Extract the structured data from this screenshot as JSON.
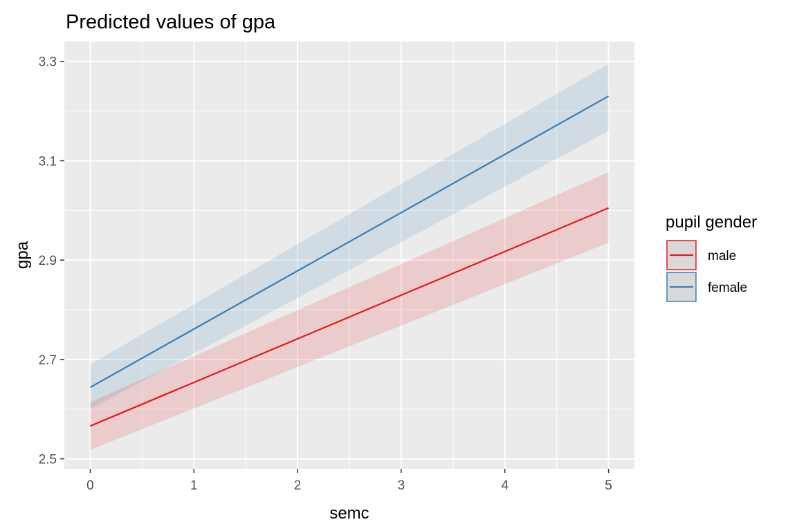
{
  "chart_data": {
    "type": "line",
    "title": "Predicted values of gpa",
    "xlabel": "semc",
    "ylabel": "gpa",
    "xlim": [
      -0.25,
      5.25
    ],
    "ylim": [
      2.48,
      3.34
    ],
    "x_ticks": [
      0,
      1,
      2,
      3,
      4,
      5
    ],
    "x_tick_labels": [
      "0",
      "1",
      "2",
      "3",
      "4",
      "5"
    ],
    "y_ticks": [
      2.5,
      2.7,
      2.9,
      3.1,
      3.3
    ],
    "y_tick_labels": [
      "2.5",
      "2.7",
      "2.9",
      "3.1",
      "3.3"
    ],
    "grid": true,
    "legend": {
      "title": "pupil gender",
      "position": "right"
    },
    "series": [
      {
        "name": "male",
        "color": "#e41a1c",
        "x": [
          0,
          5
        ],
        "y": [
          2.566,
          3.005
        ],
        "ci_low": [
          2.518,
          2.935
        ],
        "ci_high": [
          2.614,
          3.077
        ]
      },
      {
        "name": "female",
        "color": "#377eb8",
        "x": [
          0,
          5
        ],
        "y": [
          2.644,
          3.23
        ],
        "ci_low": [
          2.6,
          3.16
        ],
        "ci_high": [
          2.69,
          3.295
        ]
      }
    ]
  }
}
